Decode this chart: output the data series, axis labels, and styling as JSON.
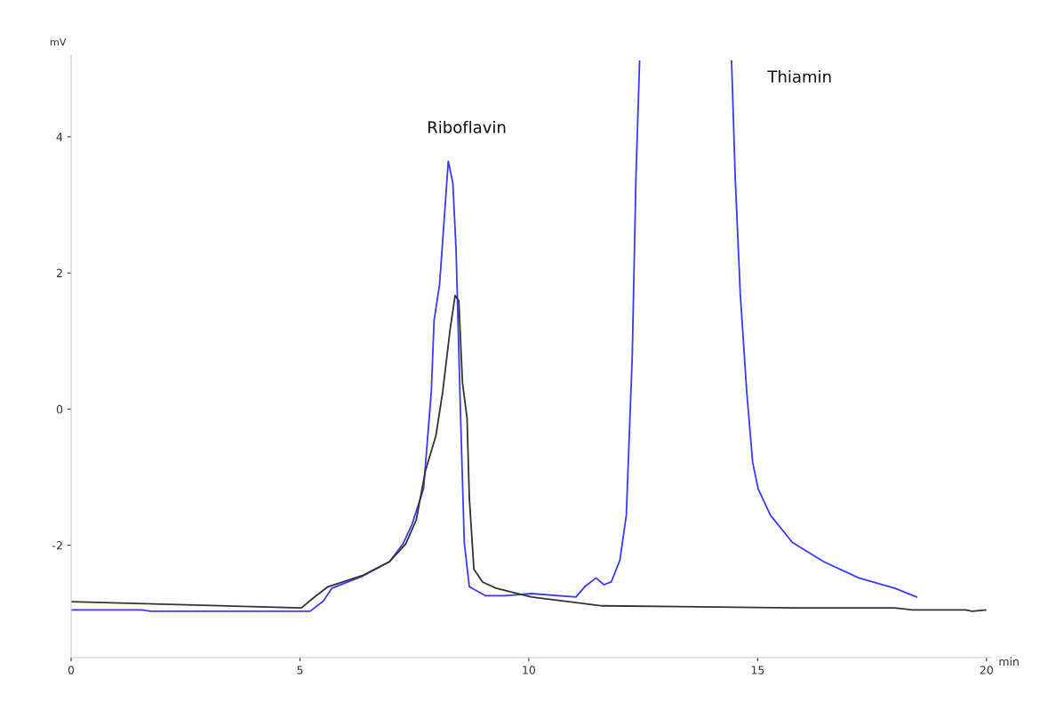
{
  "chart_data": {
    "type": "line",
    "xlabel": "min",
    "ylabel": "mV",
    "xlim": [
      0,
      20.1
    ],
    "ylim": [
      -3.65,
      5.2
    ],
    "xticks": [
      0,
      5,
      10,
      15,
      20
    ],
    "yticks": [
      -2,
      0,
      2,
      4
    ],
    "grid": false,
    "legend": false,
    "marker": "none",
    "line_style": "solid",
    "annotations": [
      "Riboflavin",
      "Thiamin"
    ],
    "series": [
      {
        "color": "#3b3bf5",
        "x": [
          0,
          1.55,
          1.74,
          5.03,
          5.22,
          5.51,
          5.7,
          6.38,
          6.96,
          7.25,
          7.45,
          7.7,
          7.87,
          7.93,
          8.05,
          8.16,
          8.24,
          8.34,
          8.41,
          8.51,
          8.59,
          8.7,
          9.05,
          9.48,
          10.06,
          11.03,
          11.22,
          11.47,
          11.64,
          11.8,
          11.99,
          12.13,
          12.26,
          12.34,
          12.42,
          13.4,
          14.43,
          14.51,
          14.62,
          14.76,
          14.89,
          15.01,
          15.28,
          15.76,
          16.44,
          17.21,
          17.99,
          18.47
        ],
        "values": [
          -2.95,
          -2.95,
          -2.97,
          -2.97,
          -2.97,
          -2.82,
          -2.63,
          -2.45,
          -2.24,
          -1.98,
          -1.69,
          -1.17,
          0.26,
          1.3,
          1.83,
          2.87,
          3.64,
          3.32,
          2.35,
          -0.13,
          -1.96,
          -2.61,
          -2.74,
          -2.74,
          -2.71,
          -2.76,
          -2.61,
          -2.48,
          -2.58,
          -2.54,
          -2.22,
          -1.56,
          0.78,
          3.39,
          5.11,
          null,
          5.11,
          3.39,
          1.69,
          0.26,
          -0.78,
          -1.17,
          -1.56,
          -1.96,
          -2.24,
          -2.48,
          -2.63,
          -2.76
        ]
      },
      {
        "color": "#333333",
        "x": [
          0,
          5.03,
          5.32,
          5.61,
          6.38,
          6.96,
          7.31,
          7.54,
          7.74,
          7.97,
          8.12,
          8.28,
          8.39,
          8.47,
          8.55,
          8.65,
          8.7,
          8.8,
          8.99,
          9.28,
          10.06,
          11.61,
          15.86,
          17.99,
          18.38,
          19.54,
          19.69,
          19.98
        ],
        "values": [
          -2.83,
          -2.92,
          -2.76,
          -2.61,
          -2.44,
          -2.24,
          -1.98,
          -1.63,
          -0.91,
          -0.39,
          0.26,
          1.17,
          1.67,
          1.59,
          0.39,
          -0.13,
          -1.3,
          -2.35,
          -2.54,
          -2.63,
          -2.76,
          -2.89,
          -2.92,
          -2.92,
          -2.95,
          -2.95,
          -2.97,
          -2.95
        ]
      }
    ]
  }
}
